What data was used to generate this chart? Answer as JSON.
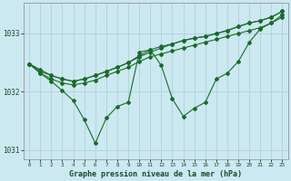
{
  "title": "Graphe pression niveau de la mer (hPa)",
  "bg_color": "#cce8f0",
  "grid_color": "#a8cdd8",
  "line_color": "#1a6b2a",
  "x_values": [
    0,
    1,
    2,
    3,
    4,
    5,
    6,
    7,
    8,
    9,
    10,
    11,
    12,
    13,
    14,
    15,
    16,
    17,
    18,
    19,
    20,
    21,
    22,
    23
  ],
  "series_zigzag": [
    1032.48,
    1032.32,
    1032.18,
    1032.02,
    1031.85,
    1031.52,
    1031.12,
    1031.55,
    1031.75,
    1031.82,
    1032.68,
    1032.72,
    1032.45,
    1031.88,
    1031.58,
    1031.72,
    1031.82,
    1032.22,
    1032.32,
    1032.52,
    1032.85,
    1033.08,
    1033.18,
    1033.32
  ],
  "series_upper1": [
    1032.48,
    1032.38,
    1032.28,
    1032.22,
    1032.18,
    1032.22,
    1032.28,
    1032.35,
    1032.42,
    1032.5,
    1032.62,
    1032.72,
    1032.78,
    1032.82,
    1032.88,
    1032.92,
    1032.95,
    1033.0,
    1033.05,
    1033.12,
    1033.18,
    1033.22,
    1033.28,
    1033.38
  ],
  "series_upper2": [
    1032.48,
    1032.35,
    1032.28,
    1032.22,
    1032.18,
    1032.22,
    1032.28,
    1032.35,
    1032.42,
    1032.5,
    1032.6,
    1032.68,
    1032.75,
    1032.82,
    1032.88,
    1032.92,
    1032.95,
    1033.0,
    1033.05,
    1033.12,
    1033.18,
    1033.22,
    1033.28,
    1033.38
  ],
  "series_mid": [
    1032.48,
    1032.32,
    1032.22,
    1032.15,
    1032.12,
    1032.15,
    1032.2,
    1032.28,
    1032.35,
    1032.42,
    1032.52,
    1032.6,
    1032.65,
    1032.7,
    1032.75,
    1032.8,
    1032.85,
    1032.9,
    1032.95,
    1033.0,
    1033.05,
    1033.1,
    1033.18,
    1033.28
  ],
  "ylim": [
    1030.85,
    1033.52
  ],
  "yticks": [
    1031,
    1032,
    1033
  ],
  "xlim": [
    -0.5,
    23.5
  ],
  "figsize": [
    3.2,
    2.0
  ],
  "dpi": 100
}
